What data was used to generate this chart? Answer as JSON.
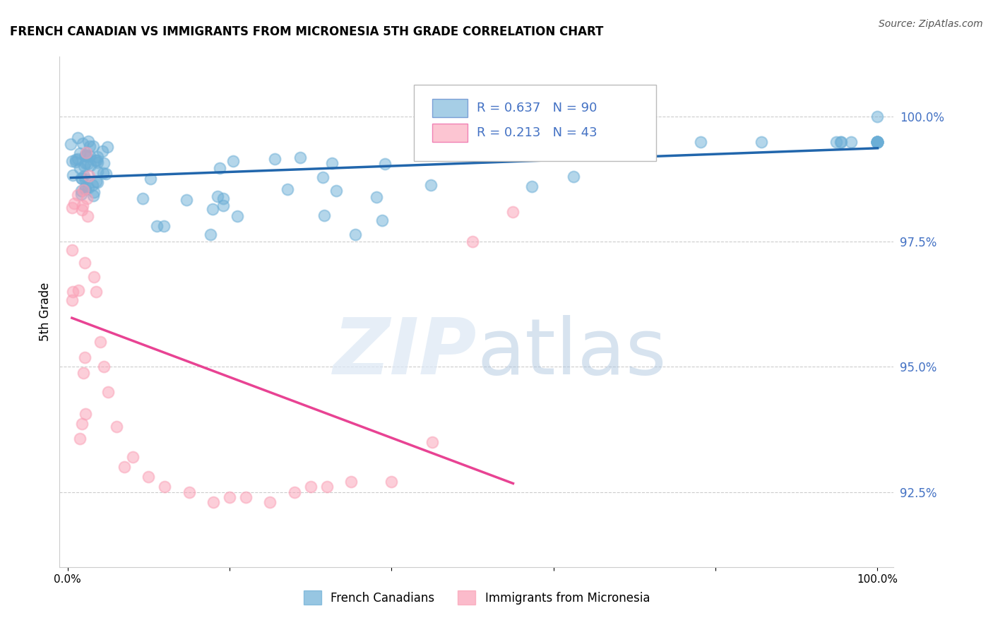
{
  "title": "FRENCH CANADIAN VS IMMIGRANTS FROM MICRONESIA 5TH GRADE CORRELATION CHART",
  "source": "Source: ZipAtlas.com",
  "ylabel": "5th Grade",
  "legend_blue": "French Canadians",
  "legend_pink": "Immigrants from Micronesia",
  "R_blue": 0.637,
  "N_blue": 90,
  "R_pink": 0.213,
  "N_pink": 43,
  "blue_color": "#6baed6",
  "pink_color": "#fa9fb5",
  "blue_line_color": "#2166ac",
  "pink_line_color": "#e84393",
  "ytick_labels": [
    "92.5%",
    "95.0%",
    "97.5%",
    "100.0%"
  ],
  "ytick_values": [
    92.5,
    95.0,
    97.5,
    100.0
  ],
  "ymin": 91.0,
  "ymax": 101.2,
  "xmin": -1.0,
  "xmax": 102.0
}
